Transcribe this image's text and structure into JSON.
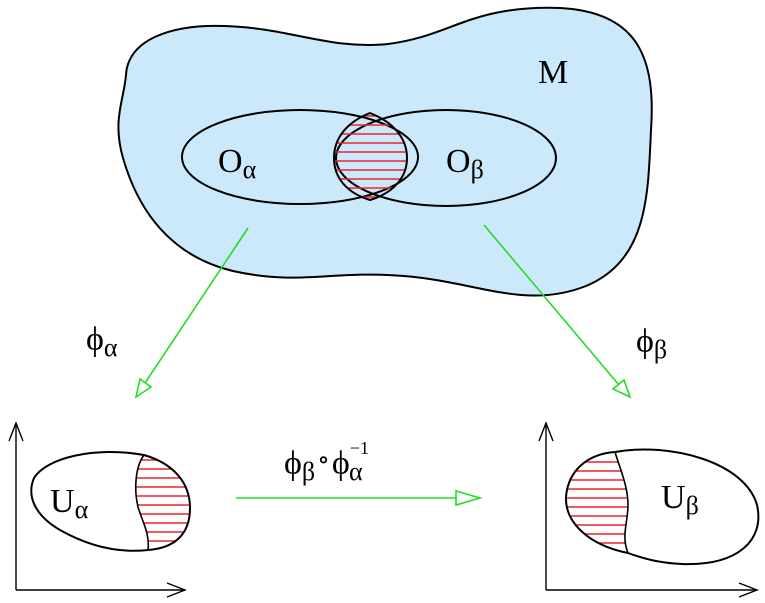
{
  "manifold": {
    "label": "M",
    "fill": "#cce9fb"
  },
  "charts": {
    "left_open_set": {
      "symbol": "O",
      "index": "α"
    },
    "right_open_set": {
      "symbol": "O",
      "index": "β"
    },
    "left_map": {
      "symbol": "ϕ",
      "index": "α"
    },
    "right_map": {
      "symbol": "ϕ",
      "index": "β"
    },
    "left_image": {
      "symbol": "U",
      "index": "α"
    },
    "right_image": {
      "symbol": "U",
      "index": "β"
    },
    "transition_map": {
      "outer": "ϕ",
      "outer_index": "β",
      "compose": "∘",
      "inner": "ϕ",
      "inner_index": "α",
      "inverse": "−1"
    }
  },
  "colors": {
    "arrow": "#22dd22",
    "hatch": "#e8262e",
    "outline": "#000000"
  }
}
